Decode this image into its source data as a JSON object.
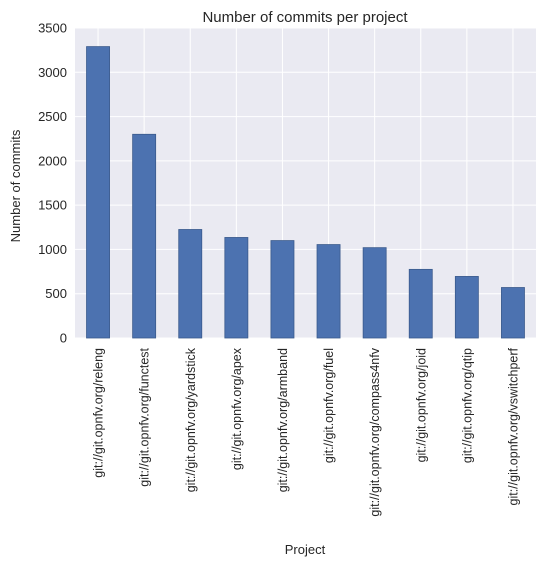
{
  "chart_data": {
    "type": "bar",
    "title": "Number of commits per project",
    "xlabel": "Project",
    "ylabel": "Number of commits",
    "categories": [
      "git://git.opnfv.org/releng",
      "git://git.opnfv.org/functest",
      "git://git.opnfv.org/yardstick",
      "git://git.opnfv.org/apex",
      "git://git.opnfv.org/armband",
      "git://git.opnfv.org/fuel",
      "git://git.opnfv.org/compass4nfv",
      "git://git.opnfv.org/joid",
      "git://git.opnfv.org/qtip",
      "git://git.opnfv.org/vswitchperf"
    ],
    "values": [
      3290,
      2300,
      1225,
      1135,
      1100,
      1055,
      1020,
      775,
      695,
      570
    ],
    "ylim": [
      0,
      3500
    ],
    "yticks": [
      0,
      500,
      1000,
      1500,
      2000,
      2500,
      3000,
      3500
    ],
    "grid": true,
    "colors": {
      "bar": "#4C72B0",
      "bar_edge": "#3a5a8c",
      "plot_background": "#EAEAF2",
      "grid": "#ffffff",
      "text": "#262626"
    }
  }
}
